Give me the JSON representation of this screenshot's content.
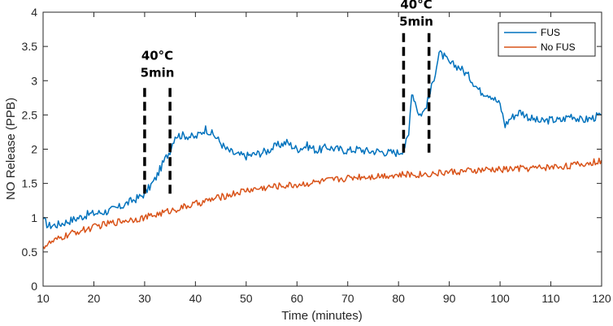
{
  "chart_data": {
    "type": "line",
    "title": "",
    "xlabel": "Time (minutes)",
    "ylabel": "NO Release (PPB)",
    "xlim": [
      10,
      120
    ],
    "ylim": [
      0,
      4
    ],
    "xticks": [
      "10",
      "20",
      "30",
      "40",
      "50",
      "60",
      "70",
      "80",
      "90",
      "100",
      "110",
      "120"
    ],
    "yticks": [
      "0",
      "0.5",
      "1",
      "1.5",
      "2",
      "2.5",
      "3",
      "3.5",
      "4"
    ],
    "grid": false,
    "legend_position": "top-right",
    "series": [
      {
        "name": "FUS",
        "color": "#0072BD",
        "noise": 0.06,
        "points": [
          [
            10,
            0.98
          ],
          [
            11,
            0.88
          ],
          [
            13,
            0.9
          ],
          [
            15,
            0.95
          ],
          [
            17,
            1.0
          ],
          [
            19,
            1.05
          ],
          [
            21,
            1.07
          ],
          [
            23,
            1.1
          ],
          [
            25,
            1.15
          ],
          [
            27,
            1.23
          ],
          [
            29,
            1.3
          ],
          [
            30,
            1.35
          ],
          [
            31,
            1.45
          ],
          [
            32,
            1.55
          ],
          [
            33,
            1.7
          ],
          [
            34,
            1.85
          ],
          [
            35,
            1.98
          ],
          [
            36,
            2.2
          ],
          [
            38,
            2.2
          ],
          [
            40,
            2.17
          ],
          [
            42,
            2.3
          ],
          [
            44,
            2.18
          ],
          [
            46,
            2.0
          ],
          [
            48,
            1.92
          ],
          [
            50,
            1.9
          ],
          [
            52,
            1.93
          ],
          [
            54,
            1.97
          ],
          [
            56,
            2.05
          ],
          [
            58,
            2.1
          ],
          [
            60,
            2.0
          ],
          [
            62,
            2.05
          ],
          [
            64,
            1.98
          ],
          [
            66,
            2.03
          ],
          [
            68,
            2.0
          ],
          [
            70,
            1.98
          ],
          [
            72,
            2.0
          ],
          [
            74,
            1.97
          ],
          [
            76,
            1.97
          ],
          [
            78,
            1.95
          ],
          [
            80,
            1.95
          ],
          [
            81,
            2.0
          ],
          [
            82,
            2.2
          ],
          [
            82.6,
            2.85
          ],
          [
            83.5,
            2.65
          ],
          [
            84,
            2.5
          ],
          [
            85,
            2.55
          ],
          [
            86,
            2.75
          ],
          [
            87,
            3.05
          ],
          [
            88,
            3.4
          ],
          [
            89,
            3.35
          ],
          [
            90,
            3.25
          ],
          [
            92,
            3.2
          ],
          [
            94,
            3.05
          ],
          [
            96,
            2.85
          ],
          [
            98,
            2.8
          ],
          [
            100,
            2.65
          ],
          [
            101,
            2.35
          ],
          [
            102,
            2.45
          ],
          [
            104,
            2.55
          ],
          [
            106,
            2.45
          ],
          [
            108,
            2.4
          ],
          [
            110,
            2.43
          ],
          [
            112,
            2.42
          ],
          [
            114,
            2.5
          ],
          [
            116,
            2.42
          ],
          [
            118,
            2.45
          ],
          [
            120,
            2.5
          ]
        ]
      },
      {
        "name": "No FUS",
        "color": "#D95319",
        "noise": 0.05,
        "points": [
          [
            10,
            0.58
          ],
          [
            12,
            0.65
          ],
          [
            14,
            0.72
          ],
          [
            16,
            0.78
          ],
          [
            18,
            0.82
          ],
          [
            20,
            0.86
          ],
          [
            22,
            0.9
          ],
          [
            24,
            0.93
          ],
          [
            26,
            0.96
          ],
          [
            28,
            0.98
          ],
          [
            30,
            1.0
          ],
          [
            32,
            1.04
          ],
          [
            34,
            1.08
          ],
          [
            36,
            1.12
          ],
          [
            38,
            1.16
          ],
          [
            40,
            1.2
          ],
          [
            42,
            1.24
          ],
          [
            44,
            1.28
          ],
          [
            46,
            1.32
          ],
          [
            48,
            1.36
          ],
          [
            50,
            1.4
          ],
          [
            52,
            1.42
          ],
          [
            54,
            1.44
          ],
          [
            56,
            1.46
          ],
          [
            58,
            1.47
          ],
          [
            60,
            1.48
          ],
          [
            62,
            1.5
          ],
          [
            64,
            1.52
          ],
          [
            66,
            1.54
          ],
          [
            68,
            1.56
          ],
          [
            70,
            1.58
          ],
          [
            72,
            1.6
          ],
          [
            74,
            1.6
          ],
          [
            76,
            1.61
          ],
          [
            78,
            1.62
          ],
          [
            80,
            1.62
          ],
          [
            82,
            1.63
          ],
          [
            84,
            1.63
          ],
          [
            86,
            1.64
          ],
          [
            88,
            1.65
          ],
          [
            90,
            1.67
          ],
          [
            92,
            1.67
          ],
          [
            94,
            1.68
          ],
          [
            96,
            1.69
          ],
          [
            98,
            1.7
          ],
          [
            100,
            1.7
          ],
          [
            102,
            1.71
          ],
          [
            104,
            1.72
          ],
          [
            106,
            1.72
          ],
          [
            108,
            1.73
          ],
          [
            110,
            1.74
          ],
          [
            112,
            1.75
          ],
          [
            114,
            1.76
          ],
          [
            116,
            1.78
          ],
          [
            118,
            1.8
          ],
          [
            120,
            1.84
          ]
        ]
      }
    ],
    "annotations": [
      {
        "line1": "40°C",
        "line2": "5min",
        "x_start": 30,
        "x_end": 35,
        "y_low": 1.35,
        "y_high": 2.95
      },
      {
        "line1": "40°C",
        "line2": "5min",
        "x_start": 81,
        "x_end": 86,
        "y_low": 1.95,
        "y_high": 3.7
      }
    ]
  }
}
